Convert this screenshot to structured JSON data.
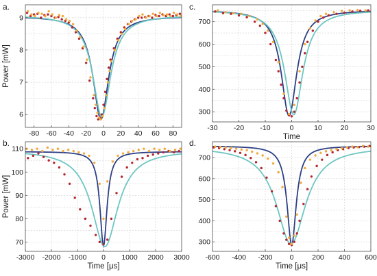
{
  "chart_data": [
    {
      "id": "a",
      "panel_label": "a.",
      "type": "scatter",
      "xlabel": "",
      "ylabel": "Power [mW]",
      "xlim": [
        -90,
        90
      ],
      "ylim": [
        5.6,
        9.4
      ],
      "xticks": [
        -80,
        -60,
        -40,
        -20,
        0,
        20,
        40,
        60,
        80
      ],
      "yticks": [
        6,
        7,
        8,
        9
      ],
      "xgrid": [
        -80,
        -60,
        -40,
        -20,
        0,
        20,
        40,
        60,
        80
      ],
      "ygrid": [
        5.5,
        6,
        6.5,
        7,
        7.5,
        8,
        8.5,
        9
      ],
      "grid": true,
      "colors": {
        "red_points": "#b5262f",
        "orange_points": "#f2a93b",
        "fit_dark": "#2c3f86",
        "fit_light": "#6cc6c2"
      },
      "series": [
        {
          "kind": "points",
          "color": "red",
          "x": [
            -88,
            -84,
            -80,
            -76,
            -72,
            -68,
            -64,
            -60,
            -56,
            -52,
            -48,
            -44,
            -40,
            -36,
            -32,
            -28,
            -24,
            -20,
            -16,
            -12,
            -10,
            -8,
            -6,
            -4,
            -2,
            0,
            2,
            4,
            6,
            8,
            12,
            16,
            20,
            24,
            28,
            32,
            36,
            40,
            44,
            48,
            52,
            56,
            60,
            64,
            68,
            72,
            76,
            80,
            84,
            88
          ],
          "y": [
            9.15,
            9.05,
            9.1,
            9.12,
            9.0,
            9.08,
            9.1,
            9.05,
            9.0,
            9.02,
            8.95,
            8.9,
            8.85,
            8.7,
            8.55,
            8.35,
            8.05,
            7.6,
            7.05,
            6.5,
            6.2,
            5.95,
            5.85,
            5.9,
            6.0,
            6.3,
            6.7,
            7.1,
            7.45,
            7.7,
            8.05,
            8.35,
            8.55,
            8.7,
            8.8,
            8.88,
            8.95,
            9.0,
            9.0,
            9.02,
            9.05,
            9.0,
            9.08,
            9.05,
            9.1,
            9.05,
            9.1,
            9.05,
            9.08,
            9.12
          ]
        },
        {
          "kind": "points",
          "color": "orange",
          "x": [
            -87,
            -83,
            -79,
            -75,
            -71,
            -67,
            -63,
            -59,
            -55,
            -51,
            -47,
            -43,
            -39,
            -35,
            -31,
            -27,
            -23,
            -19,
            -15,
            -11,
            -9,
            -7,
            -5,
            -3,
            -1,
            1,
            3,
            5,
            7,
            9,
            13,
            17,
            21,
            25,
            29,
            33,
            37,
            41,
            45,
            49,
            53,
            57,
            61,
            65,
            69,
            73,
            77,
            81,
            85,
            89
          ],
          "y": [
            9.2,
            9.1,
            9.05,
            9.15,
            9.12,
            9.05,
            9.2,
            9.1,
            9.0,
            9.08,
            9.05,
            8.95,
            8.9,
            8.8,
            8.6,
            8.4,
            8.1,
            7.7,
            7.15,
            6.6,
            6.3,
            6.05,
            5.9,
            5.85,
            5.95,
            6.2,
            6.6,
            7.0,
            7.35,
            7.65,
            8.0,
            8.3,
            8.5,
            8.65,
            8.8,
            8.9,
            8.95,
            9.05,
            9.1,
            9.0,
            9.05,
            9.12,
            9.05,
            9.15,
            9.08,
            9.1,
            9.05,
            9.15,
            9.1,
            9.05
          ]
        },
        {
          "kind": "fit",
          "color": "dark",
          "model": {
            "base": 9.05,
            "depth": 3.2,
            "center": -3,
            "width": 11
          }
        },
        {
          "kind": "fit",
          "color": "light",
          "model": {
            "base": 9.08,
            "depth": 3.15,
            "center": -2,
            "width": 12.5
          }
        }
      ]
    },
    {
      "id": "b",
      "panel_label": "b.",
      "type": "scatter",
      "xlabel": "Time [μs]",
      "ylabel": "Power [mW]",
      "xlim": [
        -3000,
        3000
      ],
      "ylim": [
        66,
        113
      ],
      "xticks": [
        -3000,
        -2000,
        -1000,
        0,
        1000,
        2000,
        3000
      ],
      "yticks": [
        70,
        80,
        90,
        100,
        110
      ],
      "xgrid": [
        -2000,
        -1000,
        0,
        1000,
        2000
      ],
      "ygrid": [
        70,
        75,
        80,
        85,
        90,
        95,
        100,
        105,
        110
      ],
      "grid": true,
      "series": [
        {
          "kind": "points",
          "color": "red",
          "x": [
            -2900,
            -2700,
            -2500,
            -2300,
            -2100,
            -1900,
            -1700,
            -1500,
            -1300,
            -1100,
            -900,
            -700,
            -500,
            -300,
            -150,
            0,
            150,
            300,
            500,
            700,
            900,
            1100,
            1300,
            1500,
            1700,
            1900,
            2100,
            2300,
            2500,
            2700,
            2900
          ],
          "y": [
            106,
            107,
            108,
            106.5,
            105,
            104,
            102,
            99,
            95,
            89,
            84,
            80,
            77,
            73,
            70,
            69,
            71,
            80,
            91,
            98,
            102,
            104,
            105.5,
            106,
            107,
            107.5,
            108,
            108.5,
            109,
            108.5,
            109
          ]
        },
        {
          "kind": "points",
          "color": "orange",
          "x": [
            -2950,
            -2750,
            -2550,
            -2350,
            -2150,
            -1950,
            -1750,
            -1550,
            -1350,
            -1150,
            -950,
            -750,
            -550,
            -350,
            -150,
            0,
            150,
            350,
            550,
            750,
            950,
            1150,
            1350,
            1550,
            1750,
            1950,
            2150,
            2350,
            2550,
            2750,
            2950
          ],
          "y": [
            110,
            109.5,
            110,
            109,
            110.5,
            109.5,
            110,
            109,
            109.5,
            109,
            108.5,
            108,
            107,
            104,
            95,
            80,
            96,
            104.5,
            107,
            108,
            108.5,
            109,
            109.5,
            110,
            109,
            110,
            109.5,
            110,
            109,
            109.5,
            110
          ]
        },
        {
          "kind": "fit",
          "color": "dark",
          "model": {
            "base": 108.8,
            "depth": 40.5,
            "center": 0,
            "width": 165
          }
        },
        {
          "kind": "fit",
          "color": "light",
          "model": {
            "base": 109.5,
            "depth": 41.5,
            "center": 50,
            "width": 610
          }
        }
      ]
    },
    {
      "id": "c",
      "panel_label": "c.",
      "type": "scatter",
      "xlabel": "Time",
      "ylabel": "",
      "xlim": [
        -30,
        30
      ],
      "ylim": [
        255,
        775
      ],
      "xticks": [
        -30,
        -20,
        -10,
        0,
        10,
        20,
        30
      ],
      "yticks": [
        300,
        400,
        500,
        600,
        700
      ],
      "xgrid": [
        -20,
        -10,
        0,
        10,
        20
      ],
      "ygrid": [
        300,
        350,
        400,
        450,
        500,
        550,
        600,
        650,
        700,
        750
      ],
      "grid": true,
      "series": [
        {
          "kind": "points",
          "color": "red",
          "x": [
            -29,
            -26,
            -23,
            -20,
            -17,
            -14,
            -12,
            -10,
            -8,
            -6,
            -5,
            -4,
            -3,
            -2,
            -1,
            0,
            1,
            2,
            3,
            4,
            5,
            6,
            8,
            10,
            12,
            14,
            17,
            20,
            23,
            26,
            29
          ],
          "y": [
            745,
            738,
            735,
            728,
            720,
            700,
            682,
            650,
            600,
            530,
            480,
            420,
            360,
            305,
            285,
            280,
            300,
            360,
            430,
            500,
            560,
            610,
            660,
            700,
            718,
            728,
            735,
            740,
            745,
            748,
            750
          ]
        },
        {
          "kind": "points",
          "color": "orange",
          "x": [
            -28,
            -25,
            -22,
            -19,
            -16,
            -13,
            -11,
            -9,
            -7,
            -5,
            -3,
            -1,
            1,
            3,
            5,
            7,
            9,
            11,
            13,
            16,
            19,
            22,
            25,
            28
          ],
          "y": [
            750,
            742,
            738,
            735,
            725,
            710,
            690,
            660,
            610,
            520,
            380,
            290,
            330,
            480,
            600,
            670,
            705,
            725,
            735,
            742,
            748,
            750,
            752,
            750
          ]
        },
        {
          "kind": "fit",
          "color": "dark",
          "model": {
            "base": 752,
            "depth": 470,
            "center": -1,
            "width": 3.6
          }
        },
        {
          "kind": "fit",
          "color": "light",
          "model": {
            "base": 752,
            "depth": 465,
            "center": 0.8,
            "width": 4.2
          }
        }
      ]
    },
    {
      "id": "d",
      "panel_label": "d.",
      "type": "scatter",
      "xlabel": "Time [μs]",
      "ylabel": "",
      "xlim": [
        -600,
        600
      ],
      "ylim": [
        255,
        775
      ],
      "xticks": [
        -600,
        -400,
        -200,
        0,
        200,
        400,
        600
      ],
      "yticks": [
        300,
        400,
        500,
        600,
        700
      ],
      "xgrid": [
        -400,
        -200,
        0,
        200,
        400
      ],
      "ygrid": [
        300,
        350,
        400,
        450,
        500,
        550,
        600,
        650,
        700,
        750
      ],
      "grid": true,
      "series": [
        {
          "kind": "points",
          "color": "red",
          "x": [
            -590,
            -550,
            -510,
            -470,
            -430,
            -390,
            -350,
            -310,
            -270,
            -230,
            -190,
            -150,
            -120,
            -90,
            -60,
            -40,
            -20,
            0,
            20,
            40,
            60,
            90,
            120,
            150,
            190,
            230,
            270,
            310,
            350,
            390,
            430,
            470,
            510,
            550,
            590
          ],
          "y": [
            748,
            745,
            740,
            735,
            730,
            722,
            712,
            698,
            678,
            650,
            605,
            540,
            470,
            400,
            340,
            310,
            290,
            285,
            300,
            340,
            400,
            480,
            550,
            610,
            660,
            690,
            712,
            725,
            735,
            740,
            745,
            748,
            750,
            752,
            755
          ]
        },
        {
          "kind": "points",
          "color": "orange",
          "x": [
            -580,
            -540,
            -500,
            -460,
            -420,
            -380,
            -340,
            -300,
            -260,
            -220,
            -180,
            -140,
            -100,
            -70,
            -40,
            -20,
            0,
            20,
            40,
            70,
            100,
            140,
            180,
            220,
            260,
            300,
            340,
            380,
            420,
            460,
            500,
            540,
            580
          ],
          "y": [
            752,
            750,
            748,
            745,
            742,
            738,
            735,
            728,
            720,
            710,
            695,
            672,
            630,
            560,
            420,
            320,
            290,
            330,
            430,
            580,
            650,
            690,
            710,
            722,
            730,
            735,
            740,
            744,
            748,
            752,
            750,
            755,
            752
          ]
        },
        {
          "kind": "fit",
          "color": "dark",
          "model": {
            "base": 755,
            "depth": 470,
            "center": 0,
            "width": 42
          }
        },
        {
          "kind": "fit",
          "color": "light",
          "model": {
            "base": 752,
            "depth": 462,
            "center": -5,
            "width": 135
          }
        }
      ]
    }
  ]
}
